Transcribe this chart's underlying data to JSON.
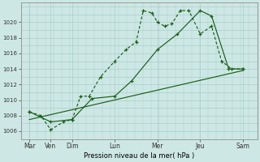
{
  "xlabel": "Pression niveau de la mer( hPa )",
  "background_color": "#cde8e4",
  "grid_color_major": "#aacccc",
  "grid_color_minor": "#bbdddd",
  "line_color": "#1a5e1a",
  "ylim": [
    1005.0,
    1022.5
  ],
  "ytick_vals": [
    1006,
    1008,
    1010,
    1012,
    1014,
    1016,
    1018,
    1020
  ],
  "day_labels": [
    "Mar",
    "Ven",
    "Dim",
    "Lun",
    "Mer",
    "Jeu",
    "Sam"
  ],
  "day_x": [
    0,
    0.75,
    1.5,
    3.0,
    4.5,
    6.0,
    7.5
  ],
  "xlim": [
    -0.3,
    8.0
  ],
  "line1_x": [
    0,
    0.4,
    0.75,
    1.2,
    1.5,
    1.8,
    2.1,
    2.5,
    3.0,
    3.4,
    3.75,
    4.0,
    4.3,
    4.5,
    4.75,
    5.0,
    5.3,
    5.6,
    6.0,
    6.4,
    6.75,
    7.1,
    7.5
  ],
  "line1_y": [
    1008.5,
    1008.0,
    1006.2,
    1007.2,
    1007.5,
    1010.5,
    1010.5,
    1013.0,
    1015.0,
    1016.5,
    1017.5,
    1021.5,
    1021.2,
    1020.0,
    1019.5,
    1019.8,
    1021.5,
    1021.5,
    1018.5,
    1019.5,
    1015.0,
    1014.0,
    1014.0
  ],
  "line2_x": [
    0,
    0.75,
    1.5,
    2.2,
    3.0,
    3.6,
    4.5,
    5.2,
    6.0,
    6.4,
    7.0,
    7.5
  ],
  "line2_y": [
    1008.5,
    1007.2,
    1007.5,
    1010.2,
    1010.5,
    1012.5,
    1016.5,
    1018.5,
    1021.5,
    1020.8,
    1014.0,
    1014.0
  ],
  "line3_x": [
    0,
    7.5
  ],
  "line3_y": [
    1007.5,
    1013.8
  ]
}
